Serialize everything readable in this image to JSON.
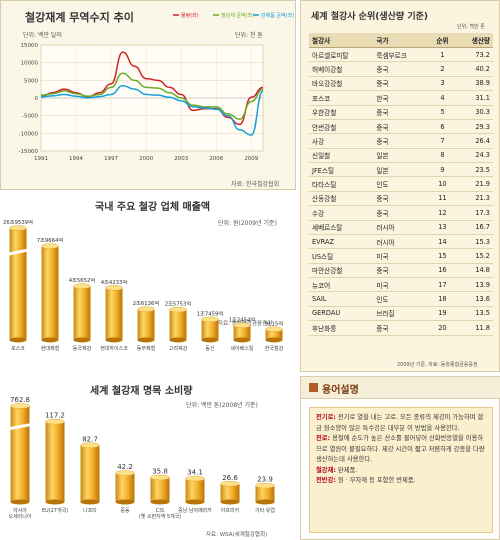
{
  "trade": {
    "title": "철강재계 무역수지 추이",
    "unit": "단위: 백만 달러",
    "unit2": "단위: 천 톤",
    "source": "자료: 한국철강협회",
    "legend": [
      "물량(좌)",
      "철강재 금액(좌)",
      "반제품 금액(좌)"
    ]
  },
  "sales": {
    "title": "국내 주요 철강 업체 매출액",
    "unit": "단위: 원(2009년 기준)",
    "source": "자료: 동양종합금융증권"
  },
  "cons": {
    "title": "세계 철강재 명목 소비량",
    "unit": "단위: 백만 톤(2008년 기준)",
    "source": "자료: WSA(세계철강협회)"
  },
  "rank": {
    "title": "세계 철강사 순위(생산량 기준)",
    "unit": "단위: 백만 톤",
    "headers": [
      "철강사",
      "국가",
      "순위",
      "생산량"
    ],
    "rows": [
      [
        "아르셀로미탈",
        "룩셈부르크",
        "1",
        "73.2"
      ],
      [
        "허베이강철",
        "중국",
        "2",
        "40.2"
      ],
      [
        "바오강강철",
        "중국",
        "3",
        "38.9"
      ],
      [
        "포스코",
        "한국",
        "4",
        "31.1"
      ],
      [
        "우한강철",
        "중국",
        "5",
        "30.3"
      ],
      [
        "안번강철",
        "중국",
        "6",
        "29.3"
      ],
      [
        "사강",
        "중국",
        "7",
        "26.4"
      ],
      [
        "신일철",
        "일본",
        "8",
        "24.3"
      ],
      [
        "JFE스틸",
        "일본",
        "9",
        "23.5"
      ],
      [
        "타타스틸",
        "인도",
        "10",
        "21.9"
      ],
      [
        "산동강철",
        "중국",
        "11",
        "21.3"
      ],
      [
        "수강",
        "중국",
        "12",
        "17.3"
      ],
      [
        "세베르스탈",
        "러시아",
        "13",
        "16.7"
      ],
      [
        "EVRAZ",
        "러시아",
        "14",
        "15.3"
      ],
      [
        "US스틸",
        "미국",
        "15",
        "15.2"
      ],
      [
        "마안산강철",
        "중국",
        "16",
        "14.8"
      ],
      [
        "뉴코어",
        "미국",
        "17",
        "13.9"
      ],
      [
        "SAIL",
        "인도",
        "18",
        "13.6"
      ],
      [
        "GERDAU",
        "브라질",
        "19",
        "13.5"
      ],
      [
        "후난화룽",
        "중국",
        "20",
        "11.8"
      ]
    ],
    "source": "2009년 기준, 자료: 동양종합금융증권"
  },
  "glossary": {
    "title": "용어설명",
    "items": [
      {
        "term": "전기로:",
        "text": " 전기로 열을 내는 고로. 모든 종류의 제강이 가능하며 합금 원소양이 많은 특수강은 대부분 이 방법을 사용한다."
      },
      {
        "term": "전로:",
        "text": " 용철에 순도가 높은 산소를 불어넣어 산화반응열을 이용하므로 열원이 불필요하다. 제강 시간이 짧고 저렴하게 강종을 다량 생산하는데 사용한다."
      },
      {
        "term": "철강재:",
        "text": " 완제품."
      },
      {
        "term": "전반강:",
        "text": " 원 · 부자재 등 포함한 반제품."
      }
    ]
  },
  "chart_data": [
    {
      "type": "line",
      "title": "철강재계 무역수지 추이",
      "ylabel": "단위: 백만 달러",
      "x": [
        1991,
        1992,
        1993,
        1994,
        1995,
        1996,
        1997,
        1998,
        1999,
        2000,
        2001,
        2002,
        2003,
        2004,
        2005,
        2006,
        2007,
        2008,
        2009,
        2010
      ],
      "xticks": [
        "1991",
        "1994",
        "1997",
        "2000",
        "2003",
        "2006",
        "2009"
      ],
      "ylim": [
        -15000,
        15000
      ],
      "yticks": [
        "15000",
        "10000",
        "5000",
        "0",
        "-5000",
        "-10000",
        "-15000"
      ],
      "grid": true,
      "legend_position": "top-right",
      "series": [
        {
          "name": "물량(좌)",
          "color": "#d2232a",
          "values": [
            500,
            1500,
            2500,
            1500,
            300,
            1500,
            4000,
            13000,
            9000,
            5500,
            5000,
            3000,
            1000,
            -3500,
            -3000,
            -3000,
            -5500,
            -7500,
            200,
            3000
          ]
        },
        {
          "name": "철강재 금액(좌)",
          "color": "#6aaa2a",
          "values": [
            800,
            1200,
            2000,
            1200,
            500,
            1000,
            3000,
            7000,
            5000,
            3000,
            2800,
            1500,
            0,
            -2000,
            -2500,
            -2500,
            -4500,
            -6000,
            -1000,
            2500
          ]
        },
        {
          "name": "반제품 금액(좌)",
          "color": "#17a2d8",
          "values": [
            300,
            600,
            1000,
            500,
            0,
            400,
            1000,
            3500,
            2500,
            1000,
            800,
            200,
            -800,
            -2500,
            -2800,
            -3200,
            -5000,
            -9000,
            -10500,
            2000
          ]
        }
      ]
    },
    {
      "type": "bar",
      "title": "국내 주요 철강 업체 매출액",
      "categories": [
        "포스코",
        "현대제철",
        "동국제강",
        "현대하이스코",
        "동부제철",
        "고려제강",
        "동신",
        "세아베스틸",
        "한국철강"
      ],
      "value_labels": [
        "26조9539억",
        "7조9664억",
        "4조5652억",
        "4조4233억",
        "2조6136억",
        "2조5753억",
        "1조7459억",
        "1조2454억",
        "9115억"
      ],
      "values": [
        26.9539,
        7.9664,
        4.5652,
        4.4233,
        2.6136,
        2.5753,
        1.7459,
        1.2454,
        0.9115
      ]
    },
    {
      "type": "bar",
      "title": "세계 철강재 명목 소비량",
      "categories": [
        "아시아\n오세아니아",
        "EU(27개국)",
        "나프타",
        "중동",
        "CIS\n(옛 소련지역 5개국)",
        "중남·남아메리카",
        "아프리카",
        "기타 유럽"
      ],
      "value_labels": [
        "762.8",
        "117.2",
        "82.7",
        "42.2",
        "35.8",
        "34.1",
        "26.6",
        "23.9"
      ],
      "values": [
        762.8,
        117.2,
        82.7,
        42.2,
        35.8,
        34.1,
        26.6,
        23.9
      ]
    }
  ]
}
